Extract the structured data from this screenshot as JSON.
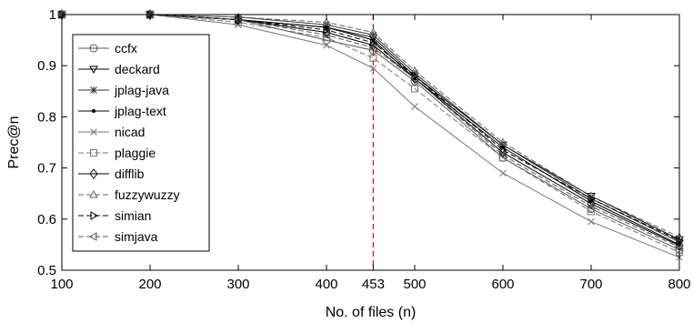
{
  "chart_data": {
    "type": "line",
    "xlabel": "No. of files (n)",
    "ylabel": "Prec@n",
    "xlim": [
      100,
      800
    ],
    "ylim": [
      0.5,
      1
    ],
    "x_ticks": [
      "100",
      "200",
      "300",
      "400",
      "453",
      "500",
      "600",
      "700",
      "800"
    ],
    "y_ticks": [
      "0.5",
      "0.6",
      "0.7",
      "0.8",
      "0.9",
      "1"
    ],
    "x": [
      100,
      200,
      300,
      400,
      453,
      500,
      600,
      700,
      800
    ],
    "reference_line": {
      "x": 453,
      "color": "#cc2222",
      "style": "dashed"
    },
    "grid": false,
    "legend_position": "left",
    "series": [
      {
        "name": "ccfx",
        "marker": "circle",
        "line": "solid",
        "color": "#555555",
        "values": [
          1,
          1,
          0.99,
          0.95,
          0.93,
          0.87,
          0.72,
          0.62,
          0.54
        ]
      },
      {
        "name": "deckard",
        "marker": "triangle-down",
        "line": "solid",
        "color": "#000000",
        "values": [
          1,
          1,
          0.99,
          0.975,
          0.955,
          0.88,
          0.745,
          0.645,
          0.56
        ]
      },
      {
        "name": "jplag-java",
        "marker": "asterisk",
        "line": "solid",
        "color": "#333333",
        "values": [
          1,
          1,
          0.995,
          0.98,
          0.96,
          0.885,
          0.745,
          0.64,
          0.555
        ]
      },
      {
        "name": "jplag-text",
        "marker": "point",
        "line": "solid",
        "color": "#000000",
        "values": [
          1,
          1,
          0.99,
          0.975,
          0.95,
          0.875,
          0.74,
          0.635,
          0.55
        ]
      },
      {
        "name": "nicad",
        "marker": "x",
        "line": "solid",
        "color": "#777777",
        "values": [
          1,
          1,
          0.98,
          0.94,
          0.895,
          0.82,
          0.69,
          0.595,
          0.525
        ]
      },
      {
        "name": "plaggie",
        "marker": "square",
        "line": "dashed",
        "color": "#777777",
        "values": [
          1,
          1,
          0.985,
          0.955,
          0.915,
          0.855,
          0.72,
          0.615,
          0.535
        ]
      },
      {
        "name": "difflib",
        "marker": "diamond",
        "line": "solid",
        "color": "#000000",
        "values": [
          1,
          1,
          0.99,
          0.965,
          0.94,
          0.875,
          0.73,
          0.63,
          0.548
        ]
      },
      {
        "name": "fuzzywuzzy",
        "marker": "triangle-up",
        "line": "dashed",
        "color": "#666666",
        "values": [
          1,
          1,
          0.995,
          0.985,
          0.965,
          0.89,
          0.75,
          0.645,
          0.565
        ]
      },
      {
        "name": "simian",
        "marker": "triangle-right",
        "line": "dashed",
        "color": "#000000",
        "values": [
          1,
          1,
          0.99,
          0.97,
          0.945,
          0.88,
          0.735,
          0.64,
          0.558
        ]
      },
      {
        "name": "simjava",
        "marker": "triangle-left",
        "line": "dashed",
        "color": "#555555",
        "values": [
          1,
          1,
          0.99,
          0.96,
          0.935,
          0.875,
          0.725,
          0.625,
          0.545
        ]
      }
    ]
  }
}
